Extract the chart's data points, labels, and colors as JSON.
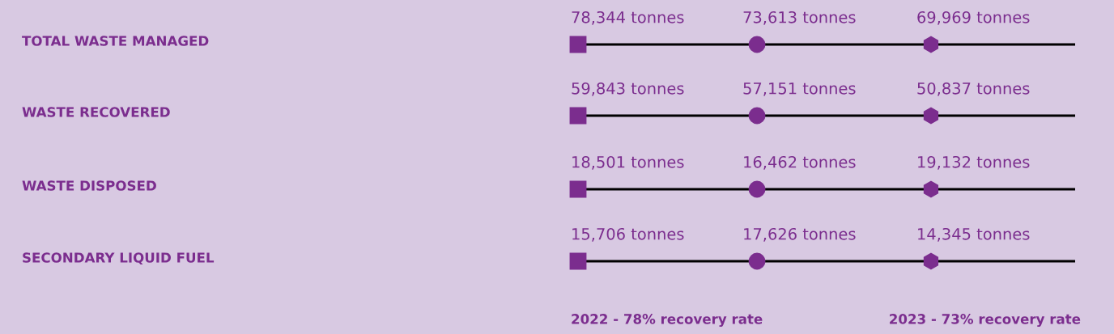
{
  "chart_data": {
    "type": "other",
    "categories": [
      "TOTAL WASTE MANAGED",
      "WASTE RECOVERED",
      "WASTE DISPOSED",
      "SECONDARY LIQUID FUEL"
    ],
    "series": [
      {
        "color": "#7b2d8e",
        "marker": "square",
        "values": [
          78344,
          59843,
          18501,
          15706
        ],
        "value_labels": [
          "78,344 tonnes",
          "59,843 tonnes",
          "18,501 tonnes",
          "15,706 tonnes"
        ]
      },
      {
        "color": "#7b2d8e",
        "marker": "circle",
        "values": [
          73613,
          57151,
          16462,
          17626
        ],
        "value_labels": [
          "73,613 tonnes",
          "57,151 tonnes",
          "16,462 tonnes",
          "17,626 tonnes"
        ]
      },
      {
        "color": "#7b2d8e",
        "marker": "hexagon",
        "values": [
          69969,
          50837,
          19132,
          14345
        ],
        "value_labels": [
          "69,969 tonnes",
          "50,837 tonnes",
          "19,132 tonnes",
          "14,345 tonnes"
        ]
      }
    ],
    "annotations": [
      "2022 - 78% recovery rate",
      "2023 - 73% recovery rate"
    ]
  }
}
